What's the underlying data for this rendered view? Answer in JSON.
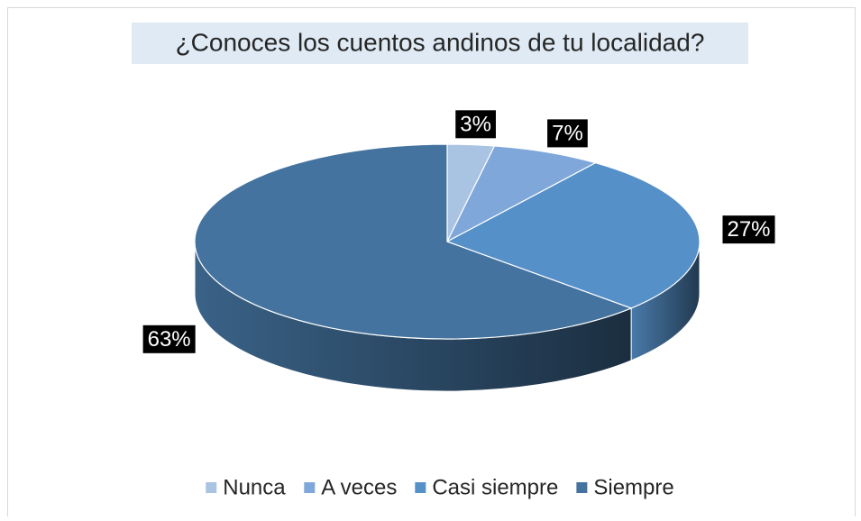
{
  "chart_data": {
    "type": "pie3d",
    "title": "¿Conoces los cuentos andinos de tu localidad?",
    "categories": [
      "Nunca",
      "A veces",
      "Casi siempre",
      "Siempre"
    ],
    "values": [
      3,
      7,
      27,
      63
    ],
    "value_labels": [
      "3%",
      "7%",
      "27%",
      "63%"
    ],
    "colors": [
      "#a9c3e2",
      "#7fa7d9",
      "#5690c8",
      "#44739f"
    ],
    "legend": "bottom"
  }
}
